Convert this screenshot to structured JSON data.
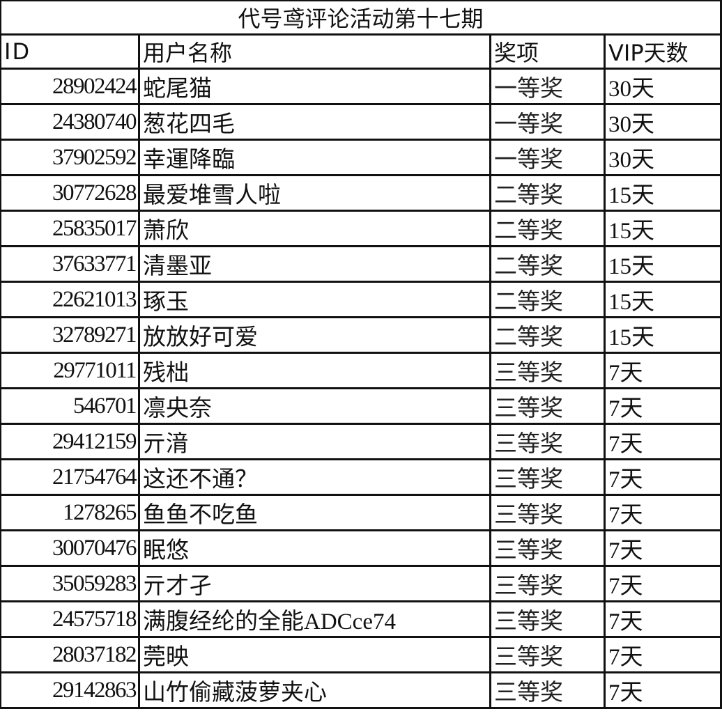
{
  "title": "代号鸢评论活动第十七期",
  "headers": {
    "id": "ID",
    "name": "用户名称",
    "prize": "奖项",
    "vip": "VIP天数"
  },
  "rows": [
    {
      "id": "28902424",
      "name": "蛇尾猫",
      "prize": "一等奖",
      "vip": "30天"
    },
    {
      "id": "24380740",
      "name": "葱花四毛",
      "prize": "一等奖",
      "vip": "30天"
    },
    {
      "id": "37902592",
      "name": "幸運降臨",
      "prize": "一等奖",
      "vip": "30天"
    },
    {
      "id": "30772628",
      "name": "最爱堆雪人啦",
      "prize": "二等奖",
      "vip": "15天"
    },
    {
      "id": "25835017",
      "name": "萧欣",
      "prize": "二等奖",
      "vip": "15天"
    },
    {
      "id": "37633771",
      "name": "清墨亚",
      "prize": "二等奖",
      "vip": "15天"
    },
    {
      "id": "22621013",
      "name": "琢玉",
      "prize": "二等奖",
      "vip": "15天"
    },
    {
      "id": "32789271",
      "name": "放放好可爱",
      "prize": "二等奖",
      "vip": "15天"
    },
    {
      "id": "29771011",
      "name": "残柮",
      "prize": "三等奖",
      "vip": "7天"
    },
    {
      "id": "546701",
      "name": "凛央奈",
      "prize": "三等奖",
      "vip": "7天"
    },
    {
      "id": "29412159",
      "name": "亓湇",
      "prize": "三等奖",
      "vip": "7天"
    },
    {
      "id": "21754764",
      "name": "这还不通？",
      "prize": "三等奖",
      "vip": "7天"
    },
    {
      "id": "1278265",
      "name": "鱼鱼不吃鱼",
      "prize": "三等奖",
      "vip": "7天"
    },
    {
      "id": "30070476",
      "name": "眠悠",
      "prize": "三等奖",
      "vip": "7天"
    },
    {
      "id": "35059283",
      "name": "亓才孑",
      "prize": "三等奖",
      "vip": "7天"
    },
    {
      "id": "24575718",
      "name": "满腹经纶的全能ADCce74",
      "prize": "三等奖",
      "vip": "7天"
    },
    {
      "id": "28037182",
      "name": "莞映",
      "prize": "三等奖",
      "vip": "7天"
    },
    {
      "id": "29142863",
      "name": "山竹偷藏菠萝夹心",
      "prize": "三等奖",
      "vip": "7天"
    }
  ]
}
